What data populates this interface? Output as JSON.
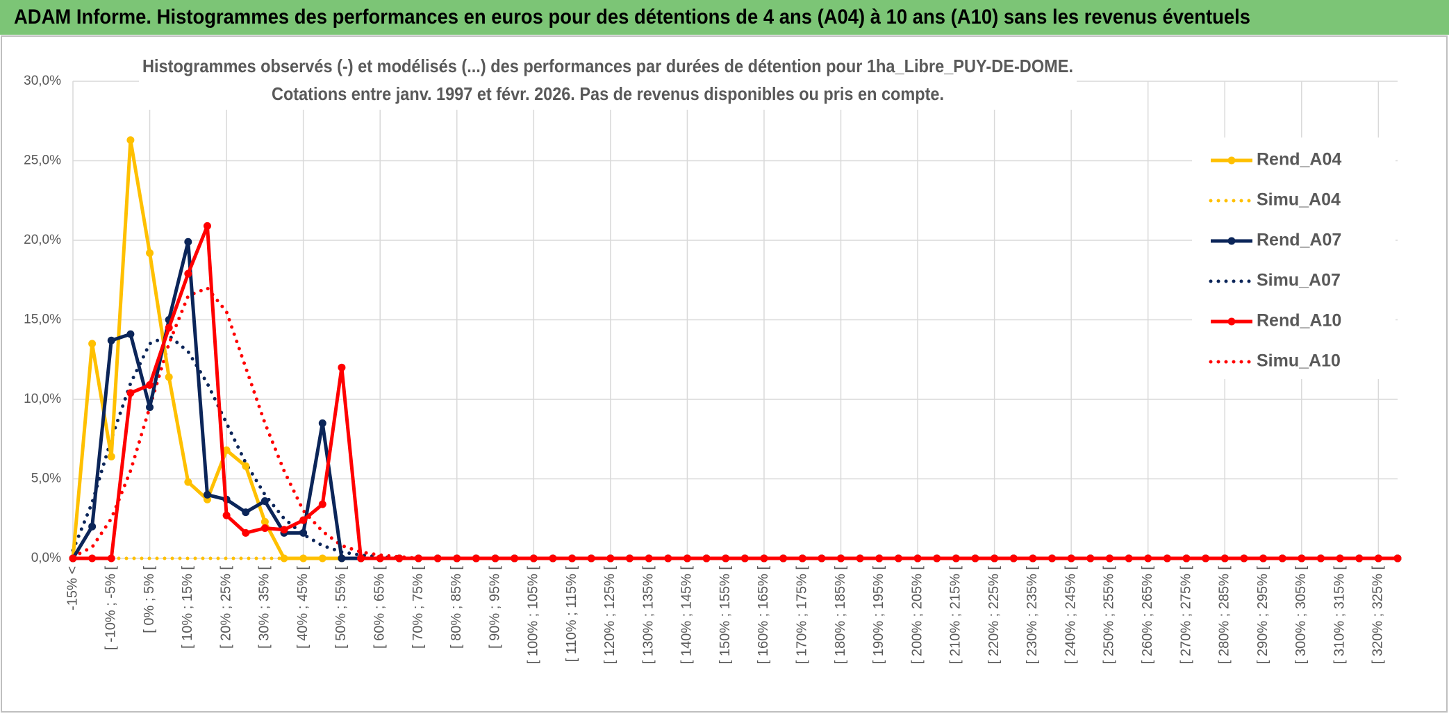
{
  "header": {
    "title": "ADAM Informe. Histogrammes des performances en euros pour des détentions de 4 ans (A04) à 10 ans (A10) sans les revenus éventuels"
  },
  "chart_data": {
    "type": "line",
    "title": [
      "Histogrammes observés (-) et modélisés (...) des performances par durées de détention pour 1ha_Libre_PUY-DE-DOME.",
      "Cotations entre janv. 1997 et févr. 2026. Pas de revenus disponibles ou pris en compte."
    ],
    "categories": [
      "-15% <",
      null,
      "[ -10% ; -5% [",
      null,
      "[ 0% ; 5% [",
      null,
      "[ 10% ; 15% [",
      null,
      "[ 20% ; 25% [",
      null,
      "[ 30% ; 35% [",
      null,
      "[ 40% ; 45% [",
      null,
      "[ 50% ; 55% [",
      null,
      "[ 60% ; 65% [",
      null,
      "[ 70% ; 75% [",
      null,
      "[ 80% ; 85% [",
      null,
      "[ 90% ; 95% [",
      null,
      "[ 100% ; 105% [",
      null,
      "[ 110% ; 115% [",
      null,
      "[ 120% ; 125% [",
      null,
      "[ 130% ; 135% [",
      null,
      "[ 140% ; 145% [",
      null,
      "[ 150% ; 155% [",
      null,
      "[ 160% ; 165% [",
      null,
      "[ 170% ; 175% [",
      null,
      "[ 180% ; 185% [",
      null,
      "[ 190% ; 195% [",
      null,
      "[ 200% ; 205% [",
      null,
      "[ 210% ; 215% [",
      null,
      "[ 220% ; 225% [",
      null,
      "[ 230% ; 235% [",
      null,
      "[ 240% ; 245% [",
      null,
      "[ 250% ; 255% [",
      null,
      "[ 260% ; 265% [",
      null,
      "[ 270% ; 275% [",
      null,
      "[ 280% ; 285% [",
      null,
      "[ 290% ; 295% [",
      null,
      "[ 300% ; 305% [",
      null,
      "[ 310% ; 315% [",
      null,
      "[ 320% ; 325% [",
      null
    ],
    "ylim": [
      0,
      30
    ],
    "yticks": [
      {
        "value": 0,
        "label": "0,0%"
      },
      {
        "value": 5,
        "label": "5,0%"
      },
      {
        "value": 10,
        "label": "10,0%"
      },
      {
        "value": 15,
        "label": "15,0%"
      },
      {
        "value": 20,
        "label": "20,0%"
      },
      {
        "value": 25,
        "label": "25,0%"
      },
      {
        "value": 30,
        "label": "30,0%"
      }
    ],
    "grid": true,
    "legend": "right",
    "series": [
      {
        "name": "Rend_A04",
        "color": "#ffc000",
        "style": "solid",
        "markers": true,
        "values": [
          0,
          13.5,
          6.4,
          26.3,
          19.2,
          11.4,
          4.8,
          3.7,
          6.8,
          5.8,
          2.3,
          0,
          0,
          0,
          0,
          0,
          0,
          0,
          0,
          0,
          0,
          0,
          0,
          0,
          0,
          0,
          0,
          0,
          0,
          0,
          0,
          0,
          0,
          0,
          0,
          0,
          0,
          0,
          0,
          0,
          0,
          0,
          0,
          0,
          0,
          0,
          0,
          0,
          0,
          0,
          0,
          0,
          0,
          0,
          0,
          0,
          0,
          0,
          0,
          0,
          0,
          0,
          0,
          0,
          0,
          0,
          0,
          0,
          0,
          0
        ]
      },
      {
        "name": "Simu_A04",
        "color": "#ffc000",
        "style": "dotted",
        "markers": false,
        "values": [
          0,
          0,
          0,
          0,
          0,
          0,
          0,
          0,
          0,
          0,
          0,
          0,
          0,
          0,
          0,
          0,
          0,
          0,
          0,
          0,
          0,
          0,
          0,
          0,
          0,
          0,
          0,
          0,
          0,
          0,
          0,
          0,
          0,
          0,
          0,
          0,
          0,
          0,
          0,
          0,
          0,
          0,
          0,
          0,
          0,
          0,
          0,
          0,
          0,
          0,
          0,
          0,
          0,
          0,
          0,
          0,
          0,
          0,
          0,
          0,
          0,
          0,
          0,
          0,
          0,
          0,
          0,
          0,
          0,
          0
        ]
      },
      {
        "name": "Rend_A07",
        "color": "#0b2559",
        "style": "solid",
        "markers": true,
        "values": [
          0,
          2.0,
          13.7,
          14.1,
          9.5,
          15.0,
          19.9,
          4.0,
          3.7,
          2.9,
          3.6,
          1.6,
          1.6,
          8.5,
          0,
          0,
          0,
          0,
          0,
          0,
          0,
          0,
          0,
          0,
          0,
          0,
          0,
          0,
          0,
          0,
          0,
          0,
          0,
          0,
          0,
          0,
          0,
          0,
          0,
          0,
          0,
          0,
          0,
          0,
          0,
          0,
          0,
          0,
          0,
          0,
          0,
          0,
          0,
          0,
          0,
          0,
          0,
          0,
          0,
          0,
          0,
          0,
          0,
          0,
          0,
          0,
          0,
          0,
          0,
          0
        ]
      },
      {
        "name": "Simu_A07",
        "color": "#0b2559",
        "style": "dotted",
        "markers": false,
        "values": [
          0.5,
          3.5,
          7.5,
          11,
          13.5,
          14,
          13,
          11,
          8.5,
          6,
          4,
          2.5,
          1.5,
          0.8,
          0.4,
          0.2,
          0.1,
          0,
          0,
          0,
          0,
          0,
          0,
          0,
          0,
          0,
          0,
          0,
          0,
          0,
          0,
          0,
          0,
          0,
          0,
          0,
          0,
          0,
          0,
          0,
          0,
          0,
          0,
          0,
          0,
          0,
          0,
          0,
          0,
          0,
          0,
          0,
          0,
          0,
          0,
          0,
          0,
          0,
          0,
          0,
          0,
          0,
          0,
          0,
          0,
          0,
          0,
          0,
          0,
          0
        ]
      },
      {
        "name": "Rend_A10",
        "color": "#ff0000",
        "style": "solid",
        "markers": true,
        "values": [
          0,
          0,
          0,
          10.4,
          10.9,
          14.5,
          17.9,
          20.9,
          2.7,
          1.6,
          1.9,
          1.8,
          2.4,
          3.4,
          12.0,
          0,
          0,
          0,
          0,
          0,
          0,
          0,
          0,
          0,
          0,
          0,
          0,
          0,
          0,
          0,
          0,
          0,
          0,
          0,
          0,
          0,
          0,
          0,
          0,
          0,
          0,
          0,
          0,
          0,
          0,
          0,
          0,
          0,
          0,
          0,
          0,
          0,
          0,
          0,
          0,
          0,
          0,
          0,
          0,
          0,
          0,
          0,
          0,
          0,
          0,
          0,
          0,
          0,
          0,
          0
        ]
      },
      {
        "name": "Simu_A10",
        "color": "#ff0000",
        "style": "dotted",
        "markers": false,
        "values": [
          0.1,
          0.7,
          2.5,
          5.5,
          9.5,
          13.5,
          16.5,
          17,
          15.5,
          12,
          8.5,
          5.5,
          3,
          1.7,
          0.8,
          0.4,
          0.2,
          0.1,
          0,
          0,
          0,
          0,
          0,
          0,
          0,
          0,
          0,
          0,
          0,
          0,
          0,
          0,
          0,
          0,
          0,
          0,
          0,
          0,
          0,
          0,
          0,
          0,
          0,
          0,
          0,
          0,
          0,
          0,
          0,
          0,
          0,
          0,
          0,
          0,
          0,
          0,
          0,
          0,
          0,
          0,
          0,
          0,
          0,
          0,
          0,
          0,
          0,
          0,
          0,
          0
        ]
      }
    ]
  }
}
